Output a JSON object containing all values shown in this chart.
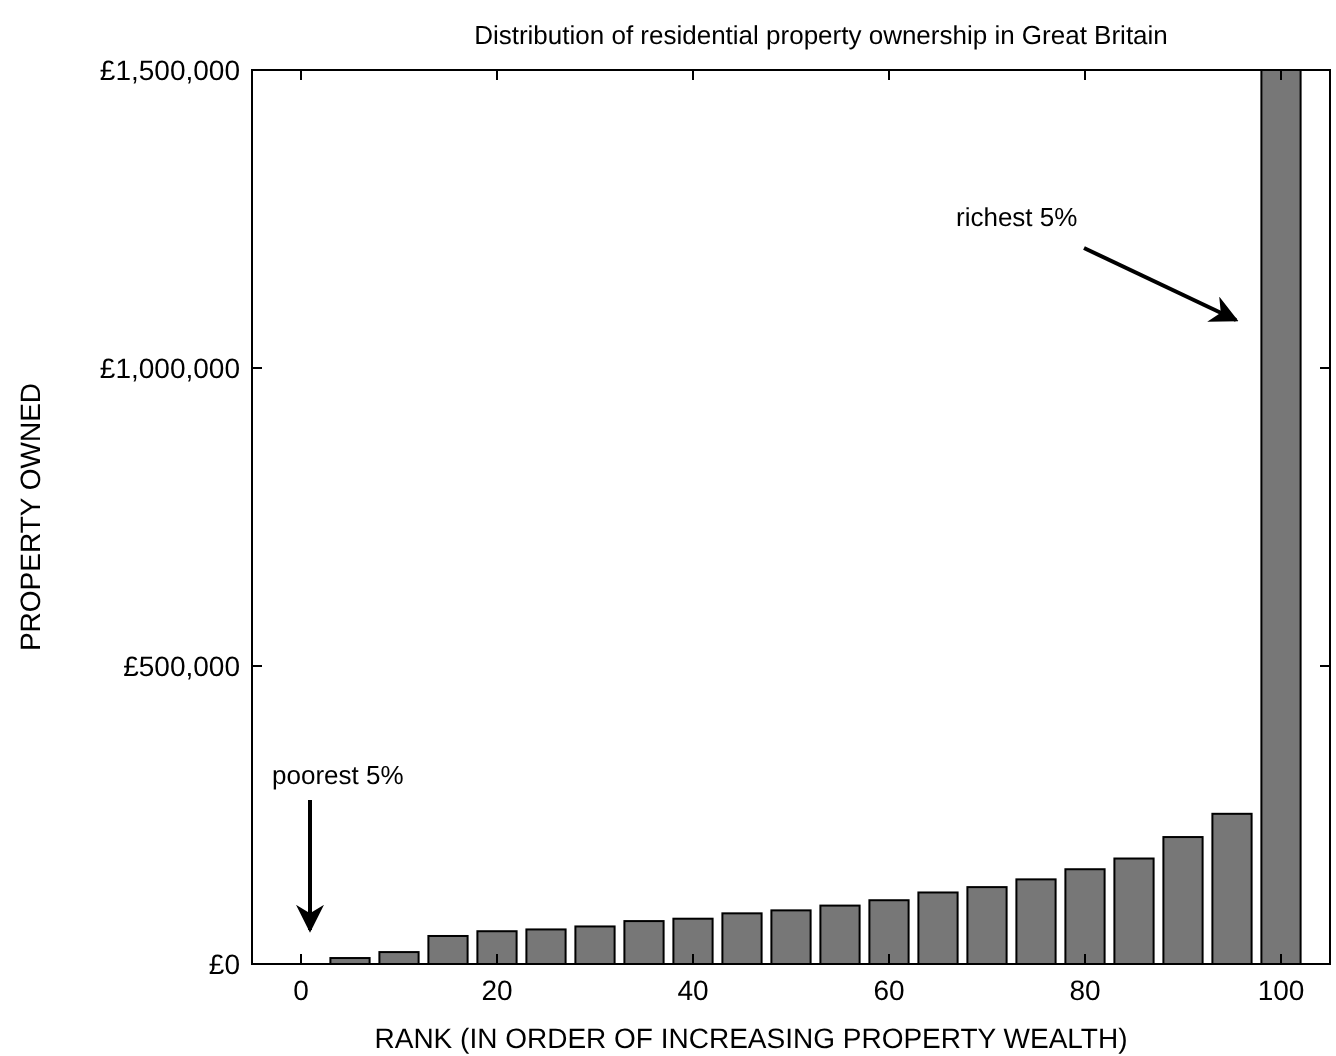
{
  "chart_data": {
    "type": "bar",
    "title": "Distribution of residential property ownership in Great Britain",
    "xlabel": "RANK (IN ORDER OF INCREASING PROPERTY WEALTH)",
    "ylabel": "PROPERTY OWNED",
    "x": [
      5,
      10,
      15,
      20,
      25,
      30,
      35,
      40,
      45,
      50,
      55,
      60,
      65,
      70,
      75,
      80,
      85,
      90,
      95,
      100
    ],
    "values": [
      10000,
      20000,
      47000,
      55000,
      58000,
      63000,
      72000,
      76000,
      85000,
      90000,
      98000,
      107000,
      120000,
      129000,
      142000,
      159000,
      177000,
      213000,
      252000,
      1500000
    ],
    "color": "#777777",
    "xlim": [
      -5,
      105
    ],
    "xticks": [
      0,
      20,
      40,
      60,
      80,
      100
    ],
    "ylim": [
      0,
      1500000
    ],
    "yticks": [
      {
        "value": 0,
        "label": "£0"
      },
      {
        "value": 500000,
        "label": "£500,000"
      },
      {
        "value": 1000000,
        "label": "£1,000,000"
      },
      {
        "value": 1500000,
        "label": "£1,500,000"
      }
    ],
    "annotations": [
      "poorest 5%",
      "richest 5%"
    ],
    "grid": false
  }
}
